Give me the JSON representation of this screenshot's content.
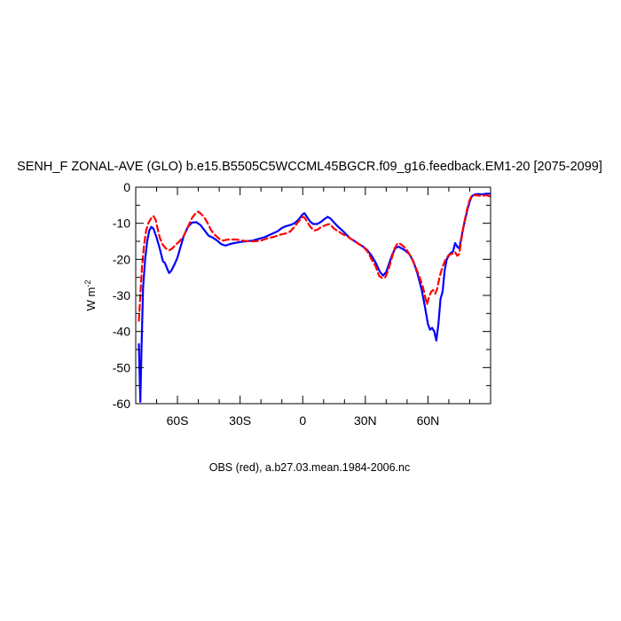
{
  "chart_data": {
    "type": "line",
    "title": "SENH_F ZONAL-AVE (GLO) b.e15.B5505C5WCCML45BGCR.f09_g16.feedback.EM1-20 [2075-2099]",
    "ylabel_main": "W m",
    "ylabel_exp": "-2",
    "footer": "OBS (red), a.b27.03.mean.1984-2006.nc",
    "xlim": [
      -80,
      90
    ],
    "ylim": [
      -60,
      0
    ],
    "x_ticks": [
      {
        "value": -60,
        "label": "60S"
      },
      {
        "value": -30,
        "label": "30S"
      },
      {
        "value": 0,
        "label": "0"
      },
      {
        "value": 30,
        "label": "30N"
      },
      {
        "value": 60,
        "label": "60N"
      }
    ],
    "y_ticks": [
      {
        "value": 0,
        "label": "0"
      },
      {
        "value": -10,
        "label": "-10"
      },
      {
        "value": -20,
        "label": "-20"
      },
      {
        "value": -30,
        "label": "-30"
      },
      {
        "value": -40,
        "label": "-40"
      },
      {
        "value": -50,
        "label": "-50"
      },
      {
        "value": -60,
        "label": "-60"
      }
    ],
    "series": [
      {
        "color": "#0000ff",
        "dash": "solid",
        "points": [
          [
            -78.5,
            -43.5
          ],
          [
            -77.8,
            -59.5
          ],
          [
            -77.2,
            -44
          ],
          [
            -76.5,
            -28
          ],
          [
            -75.5,
            -20
          ],
          [
            -74.5,
            -15
          ],
          [
            -73.5,
            -12
          ],
          [
            -72.5,
            -11
          ],
          [
            -71.5,
            -11.5
          ],
          [
            -70,
            -14
          ],
          [
            -68.5,
            -17
          ],
          [
            -67,
            -20.5
          ],
          [
            -66,
            -21
          ],
          [
            -65,
            -22.5
          ],
          [
            -64,
            -23.8
          ],
          [
            -63,
            -23.2
          ],
          [
            -61.5,
            -21.5
          ],
          [
            -60,
            -19.5
          ],
          [
            -58.5,
            -16.5
          ],
          [
            -57,
            -13.5
          ],
          [
            -55,
            -11
          ],
          [
            -53,
            -9.8
          ],
          [
            -51,
            -9.7
          ],
          [
            -49,
            -10.5
          ],
          [
            -47,
            -12
          ],
          [
            -45,
            -13.5
          ],
          [
            -43,
            -14
          ],
          [
            -41,
            -14.8
          ],
          [
            -39,
            -15.8
          ],
          [
            -37,
            -16.2
          ],
          [
            -35,
            -15.8
          ],
          [
            -33,
            -15.5
          ],
          [
            -30,
            -15.2
          ],
          [
            -27,
            -15
          ],
          [
            -24,
            -14.8
          ],
          [
            -21,
            -14.3
          ],
          [
            -18,
            -13.8
          ],
          [
            -15,
            -13
          ],
          [
            -12,
            -12.2
          ],
          [
            -10,
            -11.3
          ],
          [
            -8,
            -10.8
          ],
          [
            -6,
            -10.5
          ],
          [
            -4,
            -10
          ],
          [
            -2,
            -9
          ],
          [
            0,
            -7.5
          ],
          [
            0.8,
            -7.2
          ],
          [
            2,
            -8.2
          ],
          [
            3.5,
            -9.5
          ],
          [
            5,
            -10.2
          ],
          [
            7,
            -10.2
          ],
          [
            9,
            -9.5
          ],
          [
            10.5,
            -8.8
          ],
          [
            12,
            -8.2
          ],
          [
            13.5,
            -8.8
          ],
          [
            15,
            -9.8
          ],
          [
            17,
            -11
          ],
          [
            19,
            -12
          ],
          [
            21,
            -13.2
          ],
          [
            23,
            -14.3
          ],
          [
            25,
            -15
          ],
          [
            27,
            -15.8
          ],
          [
            29,
            -16.5
          ],
          [
            31,
            -17.5
          ],
          [
            33,
            -19
          ],
          [
            35,
            -21
          ],
          [
            37,
            -23.5
          ],
          [
            38.5,
            -24.5
          ],
          [
            40,
            -23.5
          ],
          [
            41.5,
            -21
          ],
          [
            43,
            -18.5
          ],
          [
            44.5,
            -16.8
          ],
          [
            46,
            -16.5
          ],
          [
            47.5,
            -17
          ],
          [
            49,
            -17.5
          ],
          [
            51,
            -18.5
          ],
          [
            53,
            -20.5
          ],
          [
            55,
            -24
          ],
          [
            57,
            -28.5
          ],
          [
            58.5,
            -33
          ],
          [
            60,
            -38
          ],
          [
            61,
            -39.5
          ],
          [
            62,
            -39
          ],
          [
            63,
            -40
          ],
          [
            64,
            -42.5
          ],
          [
            65,
            -38
          ],
          [
            66,
            -31
          ],
          [
            67,
            -29
          ],
          [
            68,
            -23
          ],
          [
            69,
            -20
          ],
          [
            70.5,
            -18.5
          ],
          [
            72,
            -17.8
          ],
          [
            73,
            -15.5
          ],
          [
            74,
            -16.5
          ],
          [
            75,
            -17
          ],
          [
            76,
            -14
          ],
          [
            77,
            -11
          ],
          [
            78,
            -8.5
          ],
          [
            79,
            -6
          ],
          [
            80,
            -4
          ],
          [
            81,
            -2.5
          ],
          [
            82.5,
            -2
          ],
          [
            84,
            -1.9
          ],
          [
            86,
            -2
          ],
          [
            88,
            -1.8
          ],
          [
            89.5,
            -1.8
          ]
        ]
      },
      {
        "color": "#ff0000",
        "dash": "dashed",
        "points": [
          [
            -78.5,
            -37
          ],
          [
            -77.8,
            -30
          ],
          [
            -77,
            -22
          ],
          [
            -76,
            -16
          ],
          [
            -75,
            -12
          ],
          [
            -74,
            -10
          ],
          [
            -72.5,
            -8.5
          ],
          [
            -71.5,
            -8
          ],
          [
            -70.5,
            -9
          ],
          [
            -69.5,
            -11.5
          ],
          [
            -68.5,
            -14
          ],
          [
            -67,
            -16
          ],
          [
            -65.5,
            -17
          ],
          [
            -64,
            -17.5
          ],
          [
            -62.5,
            -17
          ],
          [
            -61,
            -16
          ],
          [
            -59,
            -15
          ],
          [
            -57,
            -13.5
          ],
          [
            -55,
            -11
          ],
          [
            -53,
            -8.5
          ],
          [
            -51,
            -7
          ],
          [
            -50,
            -6.8
          ],
          [
            -48.5,
            -7.5
          ],
          [
            -47,
            -8.5
          ],
          [
            -45.5,
            -10
          ],
          [
            -44,
            -11.8
          ],
          [
            -42.5,
            -13
          ],
          [
            -41,
            -13.8
          ],
          [
            -39.5,
            -14.5
          ],
          [
            -38,
            -14.8
          ],
          [
            -36,
            -14.5
          ],
          [
            -34,
            -14.5
          ],
          [
            -32,
            -14.5
          ],
          [
            -29,
            -14.8
          ],
          [
            -26,
            -15
          ],
          [
            -23,
            -15
          ],
          [
            -20,
            -14.8
          ],
          [
            -17,
            -14.2
          ],
          [
            -14,
            -13.8
          ],
          [
            -11,
            -13.2
          ],
          [
            -8,
            -12.8
          ],
          [
            -6,
            -12.3
          ],
          [
            -4,
            -11
          ],
          [
            -2,
            -9.5
          ],
          [
            0,
            -8.2
          ],
          [
            1,
            -8.5
          ],
          [
            2.5,
            -10
          ],
          [
            4,
            -11.2
          ],
          [
            5.5,
            -12
          ],
          [
            7,
            -11.8
          ],
          [
            9,
            -11
          ],
          [
            11,
            -10.5
          ],
          [
            13,
            -10.2
          ],
          [
            15,
            -11.5
          ],
          [
            17,
            -12.2
          ],
          [
            19,
            -13
          ],
          [
            21,
            -13.5
          ],
          [
            23,
            -14.3
          ],
          [
            25,
            -15
          ],
          [
            27,
            -15.8
          ],
          [
            29,
            -16.5
          ],
          [
            31,
            -17.8
          ],
          [
            33,
            -20
          ],
          [
            35,
            -22
          ],
          [
            36.5,
            -24.5
          ],
          [
            38,
            -25.2
          ],
          [
            39.5,
            -25
          ],
          [
            41,
            -23
          ],
          [
            42.5,
            -20
          ],
          [
            44,
            -17
          ],
          [
            45.5,
            -15.5
          ],
          [
            47,
            -15.8
          ],
          [
            48.5,
            -16.5
          ],
          [
            50,
            -17.5
          ],
          [
            52,
            -19.5
          ],
          [
            54,
            -22
          ],
          [
            56,
            -25
          ],
          [
            57.5,
            -27.5
          ],
          [
            58.5,
            -30
          ],
          [
            59.5,
            -32.5
          ],
          [
            60.5,
            -30.5
          ],
          [
            61.5,
            -29
          ],
          [
            62.5,
            -28.5
          ],
          [
            63.5,
            -29.5
          ],
          [
            64.5,
            -28
          ],
          [
            65.5,
            -25
          ],
          [
            67,
            -22
          ],
          [
            68.5,
            -20
          ],
          [
            70,
            -18.8
          ],
          [
            71.5,
            -18.5
          ],
          [
            73,
            -18
          ],
          [
            74,
            -19
          ],
          [
            75,
            -18.5
          ],
          [
            76,
            -14.5
          ],
          [
            77,
            -11
          ],
          [
            78,
            -8
          ],
          [
            79,
            -5.5
          ],
          [
            80,
            -3.5
          ],
          [
            81,
            -2.4
          ],
          [
            82.5,
            -2.2
          ],
          [
            84,
            -2.3
          ],
          [
            86,
            -2.4
          ],
          [
            88,
            -2.2
          ],
          [
            89.5,
            -2.5
          ]
        ]
      }
    ]
  }
}
